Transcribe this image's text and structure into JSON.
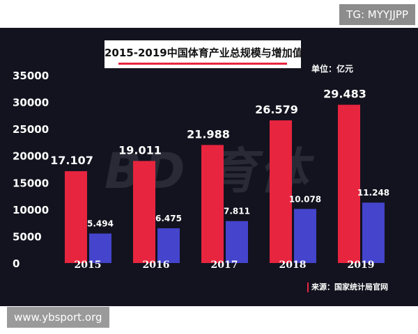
{
  "tags": {
    "tg": "TG: MYYJJPP",
    "site": "www.ybsport.org"
  },
  "watermark": "BD 育体",
  "chart_data": {
    "type": "bar",
    "title": "2015-2019中国体育产业总规模与增加值",
    "unit_label": "单位：亿元",
    "source": "来源：国家统计局官网",
    "categories": [
      "2015",
      "2016",
      "2017",
      "2018",
      "2019"
    ],
    "y_ticks": [
      "35000",
      "30000",
      "25000",
      "20000",
      "15000",
      "10000",
      "5000",
      "0"
    ],
    "ylim": [
      0,
      35000
    ],
    "grid": false,
    "series": [
      {
        "values": [
          17107,
          19011,
          21988,
          26579,
          29483
        ],
        "labels": [
          "17.107",
          "19.011",
          "21.988",
          "26.579",
          "29.483"
        ],
        "color": "#e8253f"
      },
      {
        "values": [
          5494,
          6475,
          7811,
          10078,
          11248
        ],
        "labels": [
          "5.494",
          "6.475",
          "7.811",
          "10.078",
          "11.248"
        ],
        "color": "#4444cc"
      }
    ]
  }
}
